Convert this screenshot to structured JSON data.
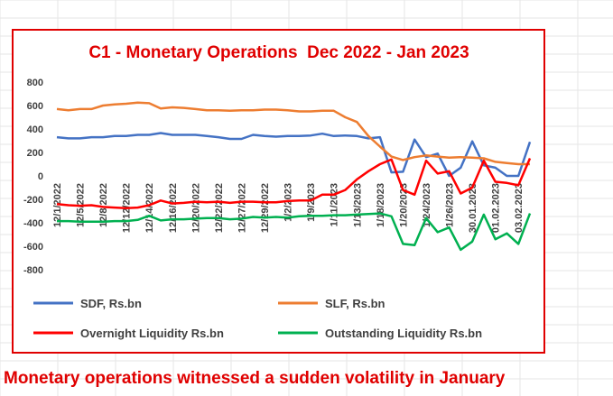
{
  "caption": "Monetary operations witnessed a sudden volatility in January",
  "chart_data": {
    "type": "line",
    "title": "C1 - Monetary Operations  Dec 2022 - Jan 2023",
    "xlabel": "",
    "ylabel": "",
    "ylim": [
      -800,
      800
    ],
    "yticks": [
      800,
      600,
      400,
      200,
      0,
      -200,
      -400,
      -600,
      -800
    ],
    "grid": false,
    "legend_position": "bottom",
    "x_tick_labels": [
      "12/1/2022",
      "12/5/2022",
      "12/8/2022",
      "12/12/2022",
      "12/14/2022",
      "12/16/2022",
      "12/20/2022",
      "12/22/2022",
      "12/27/2022",
      "12/29/2022",
      "1/2/2023",
      "1/9/2023",
      "1/11/2023",
      "1/13/2023",
      "1/18/2023",
      "1/20/2023",
      "1/24/2023",
      "1/26/2023",
      "30.01.2023",
      "01.02.2023",
      "03.02.2023"
    ],
    "x_tick_positions": [
      0,
      2,
      4,
      6,
      8,
      10,
      12,
      14,
      16,
      18,
      20,
      22,
      24,
      26,
      28,
      30,
      32,
      34,
      36,
      38,
      40
    ],
    "series": [
      {
        "name": "SDF, Rs.bn",
        "color": "#4472c4",
        "values": [
          330,
          320,
          320,
          330,
          330,
          340,
          340,
          350,
          350,
          365,
          350,
          350,
          350,
          340,
          330,
          315,
          315,
          350,
          340,
          335,
          340,
          340,
          345,
          360,
          340,
          345,
          340,
          320,
          330,
          30,
          35,
          310,
          160,
          190,
          0,
          70,
          295,
          90,
          70,
          0,
          0,
          290
        ]
      },
      {
        "name": "SLF, Rs.bn",
        "color": "#ed7d31",
        "values": [
          570,
          560,
          570,
          570,
          600,
          610,
          615,
          625,
          620,
          575,
          585,
          580,
          570,
          560,
          560,
          555,
          560,
          560,
          565,
          565,
          560,
          550,
          550,
          555,
          555,
          500,
          460,
          340,
          250,
          165,
          135,
          160,
          175,
          165,
          155,
          160,
          155,
          150,
          120,
          110,
          100,
          100
        ]
      },
      {
        "name": "Overnight Liquidity Rs.bn",
        "color": "#ff0000",
        "values": [
          -240,
          -250,
          -255,
          -250,
          -265,
          -270,
          -275,
          -270,
          -250,
          -210,
          -235,
          -230,
          -220,
          -225,
          -220,
          -230,
          -220,
          -220,
          -225,
          -225,
          -215,
          -210,
          -210,
          -160,
          -160,
          -120,
          -30,
          40,
          100,
          140,
          -120,
          -160,
          130,
          20,
          40,
          -150,
          -100,
          130,
          -50,
          -60,
          -80,
          150
        ]
      },
      {
        "name": "Outstanding Liquidity Rs.bn",
        "color": "#00b050",
        "values": [
          -385,
          -385,
          -390,
          -390,
          -390,
          -385,
          -385,
          -375,
          -340,
          -380,
          -370,
          -370,
          -365,
          -360,
          -360,
          -370,
          -365,
          -350,
          -355,
          -350,
          -355,
          -345,
          -340,
          -340,
          -335,
          -335,
          -330,
          -325,
          -320,
          -345,
          -580,
          -590,
          -360,
          -480,
          -440,
          -630,
          -560,
          -330,
          -540,
          -490,
          -580,
          -320
        ]
      }
    ]
  }
}
